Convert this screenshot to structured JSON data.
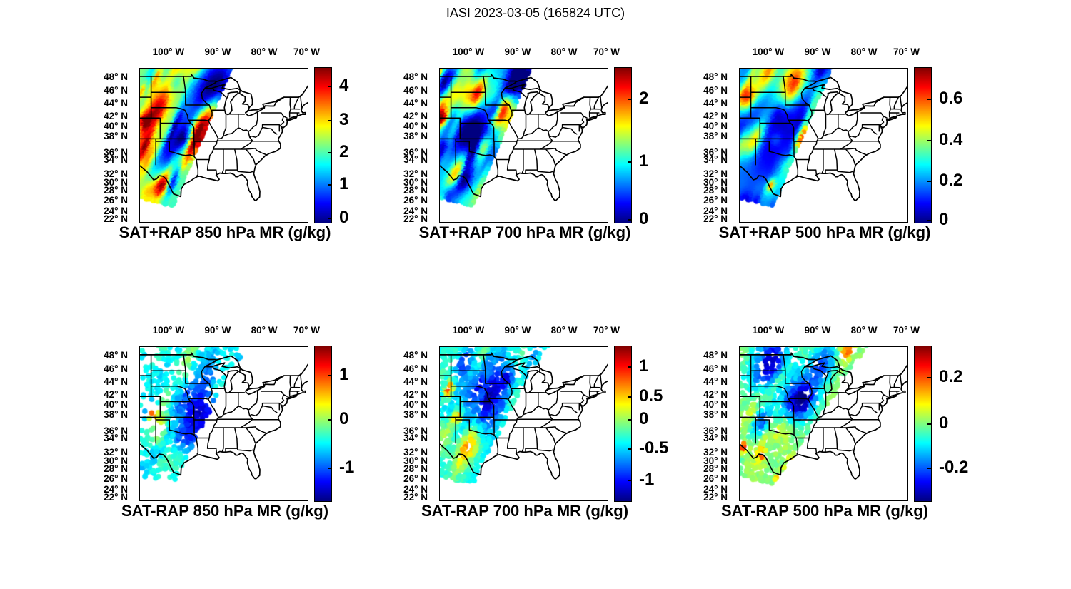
{
  "figure": {
    "title": "IASI 2023-03-05 (165824 UTC)"
  },
  "chart_data": {
    "type": "heatmap",
    "description": "Six geographic panels over the central/eastern United States showing IASI satellite retrievals. Top row: SAT+RAP retrieved mixing ratio at 850/700/500 hPa. Bottom row: SAT-RAP difference at 850/700/500 hPa. A jet-colormap satellite swath covers the western third of each map; state boundaries drawn in black.",
    "colormap": "jet",
    "colormap_stops": [
      [
        0,
        "#000080"
      ],
      [
        0.125,
        "#0000ff"
      ],
      [
        0.375,
        "#00ffff"
      ],
      [
        0.625,
        "#ffff00"
      ],
      [
        0.875,
        "#ff0000"
      ],
      [
        1,
        "#800000"
      ]
    ],
    "axes": {
      "lon_labels": [
        [
          "100° W",
          0.174
        ],
        [
          "90° W",
          0.468
        ],
        [
          "80° W",
          0.745
        ],
        [
          "70° W",
          0.998
        ]
      ],
      "lat_labels": [
        [
          "48° N",
          0.06
        ],
        [
          "46° N",
          0.149
        ],
        [
          "44° N",
          0.231
        ],
        [
          "42° N",
          0.316
        ],
        [
          "40° N",
          0.381
        ],
        [
          "38° N",
          0.448
        ],
        [
          "36° N",
          0.552
        ],
        [
          "34° N",
          0.6
        ],
        [
          "32° N",
          0.693
        ],
        [
          "30° N",
          0.75
        ],
        [
          "28° N",
          0.799
        ],
        [
          "26° N",
          0.864
        ],
        [
          "24° N",
          0.935
        ],
        [
          "22° N",
          0.986
        ]
      ]
    },
    "panels": [
      {
        "title": "SAT+RAP 850 hPa MR (g/kg)",
        "units": "g/kg",
        "value_range": [
          0,
          4.4
        ],
        "colorbar_ticks": [
          [
            "4",
            0.116
          ],
          [
            "3",
            0.341
          ],
          [
            "2",
            0.55
          ],
          [
            "1",
            0.759
          ],
          [
            "0",
            0.977
          ]
        ],
        "render": {
          "style": "filled",
          "seed": 11,
          "base": 0.46,
          "amp": 0.32,
          "streaks": 60,
          "swath": [
            [
              0,
              -8
            ],
            [
              131,
              -8
            ],
            [
              46,
              193
            ],
            [
              0,
              181
            ]
          ],
          "features": [
            [
              25,
              22,
              28,
              14,
              0.3
            ],
            [
              55,
              10,
              22,
              10,
              0.28
            ],
            [
              102,
              32,
              34,
              18,
              -0.5
            ],
            [
              55,
              98,
              24,
              12,
              -0.28
            ],
            [
              88,
              78,
              24,
              7,
              0.6
            ],
            [
              74,
              116,
              18,
              5,
              0.65
            ],
            [
              28,
              60,
              16,
              8,
              0.35
            ],
            [
              30,
              166,
              13,
              7,
              0.5
            ],
            [
              22,
              140,
              28,
              18,
              -0.12
            ],
            [
              5,
              75,
              10,
              6,
              0.35
            ]
          ]
        }
      },
      {
        "title": "SAT+RAP 700 hPa MR (g/kg)",
        "units": "g/kg",
        "value_range": [
          0,
          2.5
        ],
        "colorbar_ticks": [
          [
            "2",
            0.2
          ],
          [
            "1",
            0.609
          ],
          [
            "0",
            0.986
          ]
        ],
        "render": {
          "style": "filled",
          "seed": 22,
          "base": 0.34,
          "amp": 0.34,
          "streaks": 60,
          "swath": [
            [
              0,
              -8
            ],
            [
              131,
              -8
            ],
            [
              46,
              193
            ],
            [
              0,
              181
            ]
          ],
          "features": [
            [
              55,
              3,
              30,
              6,
              -0.3
            ],
            [
              35,
              22,
              30,
              10,
              0.5
            ],
            [
              50,
              42,
              20,
              8,
              0.65
            ],
            [
              88,
              62,
              17,
              7,
              0.7
            ],
            [
              112,
              16,
              20,
              13,
              -0.4
            ],
            [
              45,
              90,
              28,
              17,
              -0.4
            ],
            [
              62,
              108,
              20,
              6,
              0.45
            ],
            [
              30,
              145,
              18,
              7,
              0.35
            ],
            [
              25,
              170,
              24,
              12,
              -0.1
            ],
            [
              5,
              72,
              8,
              5,
              0.5
            ]
          ]
        }
      },
      {
        "title": "SAT+RAP 500 hPa MR (g/kg)",
        "units": "g/kg",
        "value_range": [
          0,
          0.76
        ],
        "colorbar_ticks": [
          [
            "0.6",
            0.2
          ],
          [
            "0.4",
            0.47
          ],
          [
            "0.2",
            0.735
          ],
          [
            "0",
            0.991
          ]
        ],
        "render": {
          "style": "filled",
          "seed": 33,
          "base": 0.24,
          "amp": 0.22,
          "streaks": 55,
          "swath": [
            [
              0,
              -8
            ],
            [
              131,
              -8
            ],
            [
              46,
              193
            ],
            [
              0,
              181
            ]
          ],
          "features": [
            [
              75,
              20,
              26,
              13,
              0.55
            ],
            [
              35,
              12,
              26,
              10,
              0.4
            ],
            [
              8,
              42,
              13,
              10,
              0.45
            ],
            [
              55,
              80,
              32,
              22,
              -0.16
            ],
            [
              88,
              100,
              15,
              5,
              0.62
            ],
            [
              40,
              135,
              26,
              14,
              -0.08
            ],
            [
              45,
              165,
              6,
              3,
              0.42
            ],
            [
              20,
              108,
              14,
              6,
              0.25
            ]
          ]
        }
      },
      {
        "title": "SAT-RAP 850 hPa MR (g/kg)",
        "units": "g/kg",
        "value_range": [
          -1.74,
          1.57
        ],
        "colorbar_ticks": [
          [
            "1",
            0.186
          ],
          [
            "0",
            0.474
          ],
          [
            "-1",
            0.791
          ]
        ],
        "render": {
          "style": "dots",
          "seed": 44,
          "base": 0.37,
          "amp": 0.13,
          "streaks": 40,
          "n": 3000,
          "r": 3.8,
          "swath": [
            [
              0,
              -8
            ],
            [
              160,
              -8
            ],
            [
              128,
              30
            ],
            [
              46,
              193
            ],
            [
              0,
              181
            ]
          ],
          "features": [
            [
              78,
              98,
              30,
              24,
              -0.33
            ],
            [
              72,
              5,
              36,
              7,
              0.22
            ],
            [
              30,
              115,
              16,
              7,
              0.22
            ],
            [
              35,
              150,
              22,
              12,
              0.12
            ],
            [
              18,
              95,
              6,
              4,
              0.5
            ]
          ],
          "density": {
            "base": 0.17,
            "features": [
              [
                78,
                98,
                34,
                0.75
              ],
              [
                38,
                152,
                38,
                0.5
              ],
              [
                75,
                5,
                24,
                0.45
              ],
              [
                90,
                16,
                10,
                0.35
              ],
              [
                20,
                42,
                16,
                0.3
              ],
              [
                110,
                8,
                22,
                0.3
              ]
            ]
          }
        }
      },
      {
        "title": "SAT-RAP 700 hPa MR (g/kg)",
        "units": "g/kg",
        "value_range": [
          -1.42,
          1.28
        ],
        "colorbar_ticks": [
          [
            "1",
            0.13
          ],
          [
            "0.5",
            0.326
          ],
          [
            "0",
            0.474
          ],
          [
            "-0.5",
            0.665
          ],
          [
            "-1",
            0.87
          ]
        ],
        "render": {
          "style": "dots",
          "seed": 55,
          "base": 0.41,
          "amp": 0.18,
          "streaks": 45,
          "n": 3800,
          "r": 3.8,
          "swath": [
            [
              0,
              -8
            ],
            [
              160,
              -8
            ],
            [
              128,
              30
            ],
            [
              46,
              193
            ],
            [
              0,
              181
            ]
          ],
          "features": [
            [
              62,
              70,
              34,
              26,
              -0.38
            ],
            [
              40,
              138,
              22,
              9,
              0.35
            ],
            [
              60,
              8,
              40,
              10,
              0.13
            ],
            [
              12,
              60,
              8,
              5,
              0.5
            ],
            [
              25,
              100,
              8,
              5,
              0.45
            ],
            [
              55,
              185,
              5,
              3,
              0.45
            ]
          ],
          "density": {
            "base": 0.52,
            "features": [
              [
                65,
                70,
                38,
                0.35
              ],
              [
                30,
                150,
                40,
                0.3
              ],
              [
                120,
                20,
                26,
                -0.35
              ],
              [
                70,
                6,
                24,
                0.3
              ]
            ]
          }
        }
      },
      {
        "title": "SAT-RAP 500 hPa MR (g/kg)",
        "units": "g/kg",
        "value_range": [
          -0.34,
          0.34
        ],
        "colorbar_ticks": [
          [
            "0.2",
            0.2
          ],
          [
            "0",
            0.502
          ],
          [
            "-0.2",
            0.791
          ]
        ],
        "render": {
          "style": "dots",
          "seed": 66,
          "base": 0.5,
          "amp": 0.11,
          "streaks": 40,
          "n": 3400,
          "r": 3.8,
          "swath": [
            [
              0,
              -8
            ],
            [
              185,
              -8
            ],
            [
              140,
              55
            ],
            [
              46,
              193
            ],
            [
              0,
              181
            ]
          ],
          "features": [
            [
              85,
              75,
              22,
              16,
              -0.52
            ],
            [
              45,
              20,
              26,
              14,
              -0.45
            ],
            [
              30,
              105,
              16,
              8,
              -0.3
            ],
            [
              115,
              25,
              20,
              14,
              -0.3
            ],
            [
              70,
              165,
              8,
              3,
              0.5
            ],
            [
              55,
              185,
              6,
              3,
              0.45
            ],
            [
              30,
              150,
              5,
              3,
              0.4
            ],
            [
              150,
              5,
              12,
              6,
              0.3
            ],
            [
              5,
              140,
              6,
              4,
              0.35
            ]
          ],
          "density": {
            "base": 0.5,
            "features": [
              [
                85,
                70,
                35,
                0.35
              ],
              [
                40,
                150,
                45,
                0.3
              ],
              [
                130,
                20,
                30,
                0.15
              ]
            ]
          }
        }
      }
    ]
  }
}
